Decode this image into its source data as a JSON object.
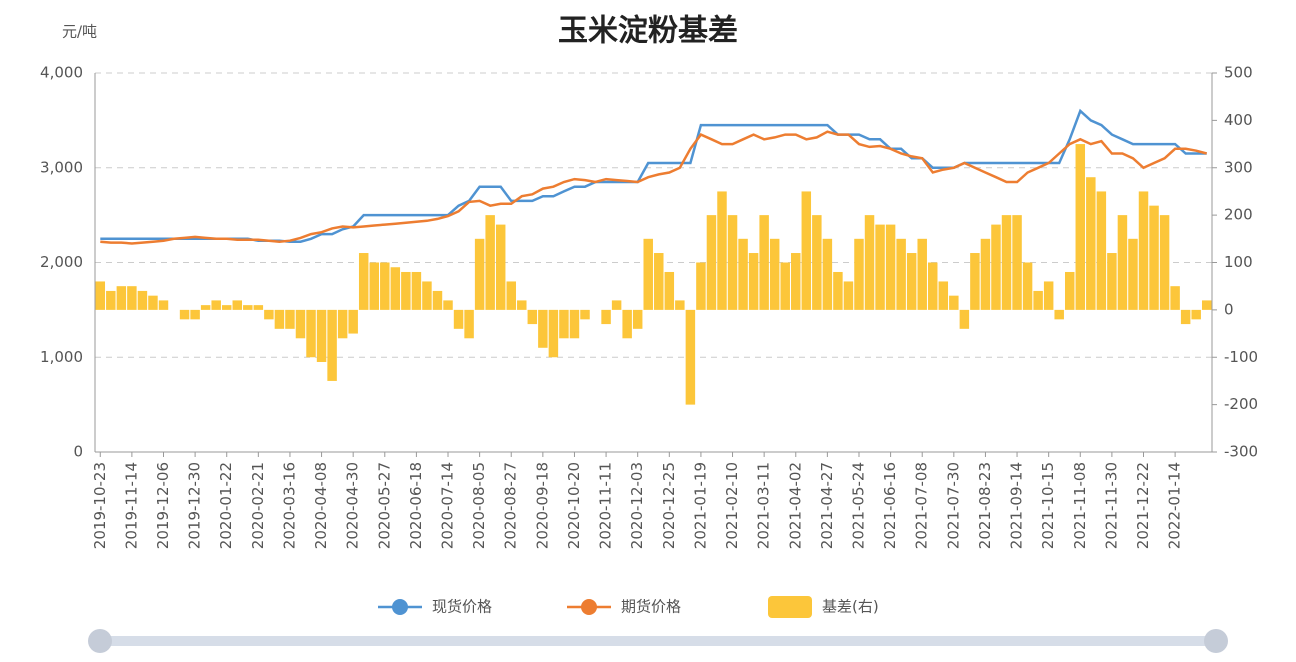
{
  "chart_data": {
    "type": "line-bar",
    "title": "玉米淀粉基差",
    "y_label": "元/吨",
    "categories": [
      "2019-10-23",
      null,
      null,
      "2019-11-14",
      null,
      null,
      "2019-12-06",
      null,
      null,
      "2019-12-30",
      null,
      null,
      "2020-01-22",
      null,
      null,
      "2020-02-21",
      null,
      null,
      "2020-03-16",
      null,
      null,
      "2020-04-08",
      null,
      null,
      "2020-04-30",
      null,
      null,
      "2020-05-27",
      null,
      null,
      "2020-06-18",
      null,
      null,
      "2020-07-14",
      null,
      null,
      "2020-08-05",
      null,
      null,
      "2020-08-27",
      null,
      null,
      "2020-09-18",
      null,
      null,
      "2020-10-20",
      null,
      null,
      "2020-11-11",
      null,
      null,
      "2020-12-03",
      null,
      null,
      "2020-12-25",
      null,
      null,
      "2021-01-19",
      null,
      null,
      "2021-02-10",
      null,
      null,
      "2021-03-11",
      null,
      null,
      "2021-04-02",
      null,
      null,
      "2021-04-27",
      null,
      null,
      "2021-05-24",
      null,
      null,
      "2021-06-16",
      null,
      null,
      "2021-07-08",
      null,
      null,
      "2021-07-30",
      null,
      null,
      "2021-08-23",
      null,
      null,
      "2021-09-14",
      null,
      null,
      "2021-10-15",
      null,
      null,
      "2021-11-08",
      null,
      null,
      "2021-11-30",
      null,
      null,
      "2021-12-22",
      null,
      null,
      "2022-01-14",
      null,
      null,
      null
    ],
    "series": [
      {
        "name": "现货价格",
        "kind": "line",
        "color": "#4f93d2",
        "values": [
          2250,
          2250,
          2250,
          2250,
          2250,
          2250,
          2250,
          2250,
          2250,
          2250,
          2250,
          2250,
          2250,
          2250,
          2250,
          2230,
          2230,
          2230,
          2220,
          2220,
          2250,
          2300,
          2300,
          2350,
          2380,
          2500,
          2500,
          2500,
          2500,
          2500,
          2500,
          2500,
          2500,
          2500,
          2600,
          2650,
          2800,
          2800,
          2800,
          2650,
          2650,
          2650,
          2700,
          2700,
          2750,
          2800,
          2800,
          2850,
          2850,
          2850,
          2850,
          2850,
          3050,
          3050,
          3050,
          3050,
          3050,
          3450,
          3450,
          3450,
          3450,
          3450,
          3450,
          3450,
          3450,
          3450,
          3450,
          3450,
          3450,
          3450,
          3350,
          3350,
          3350,
          3300,
          3300,
          3200,
          3200,
          3100,
          3100,
          3000,
          3000,
          3000,
          3050,
          3050,
          3050,
          3050,
          3050,
          3050,
          3050,
          3050,
          3050,
          3050,
          3300,
          3600,
          3500,
          3450,
          3350,
          3300,
          3250,
          3250,
          3250,
          3250,
          3250,
          3150,
          3150,
          3150
        ]
      },
      {
        "name": "期货价格",
        "kind": "line",
        "color": "#ed7d31",
        "values": [
          2220,
          2210,
          2210,
          2200,
          2210,
          2220,
          2230,
          2250,
          2260,
          2270,
          2260,
          2250,
          2250,
          2240,
          2240,
          2240,
          2230,
          2220,
          2230,
          2260,
          2300,
          2320,
          2360,
          2380,
          2370,
          2380,
          2390,
          2400,
          2410,
          2420,
          2430,
          2440,
          2460,
          2490,
          2540,
          2640,
          2650,
          2600,
          2620,
          2620,
          2700,
          2720,
          2780,
          2800,
          2850,
          2880,
          2870,
          2850,
          2880,
          2870,
          2860,
          2850,
          2900,
          2930,
          2950,
          3000,
          3200,
          3350,
          3300,
          3250,
          3250,
          3300,
          3350,
          3300,
          3320,
          3350,
          3350,
          3300,
          3320,
          3380,
          3350,
          3350,
          3250,
          3220,
          3230,
          3200,
          3150,
          3120,
          3100,
          2950,
          2980,
          3000,
          3050,
          3000,
          2950,
          2900,
          2850,
          2850,
          2950,
          3000,
          3050,
          3150,
          3250,
          3300,
          3250,
          3280,
          3150,
          3150,
          3100,
          3000,
          3050,
          3100,
          3200,
          3200,
          3180,
          3150
        ]
      },
      {
        "name": "基差(右)",
        "kind": "bar",
        "axis": "y2",
        "color": "#fcc63a",
        "values": [
          60,
          40,
          50,
          50,
          40,
          30,
          20,
          0,
          -20,
          -20,
          10,
          20,
          10,
          20,
          10,
          10,
          -20,
          -40,
          -40,
          -60,
          -100,
          -110,
          -150,
          -60,
          -50,
          120,
          100,
          100,
          90,
          80,
          80,
          60,
          40,
          20,
          -40,
          -60,
          150,
          200,
          180,
          60,
          20,
          -30,
          -80,
          -100,
          -60,
          -60,
          -20,
          0,
          -30,
          20,
          -60,
          -40,
          150,
          120,
          80,
          20,
          -200,
          100,
          200,
          250,
          200,
          150,
          120,
          200,
          150,
          100,
          120,
          250,
          200,
          150,
          80,
          60,
          150,
          200,
          180,
          180,
          150,
          120,
          150,
          100,
          60,
          30,
          -40,
          120,
          150,
          180,
          200,
          200,
          100,
          40,
          60,
          -20,
          80,
          350,
          280,
          250,
          120,
          200,
          150,
          250,
          220,
          200,
          50,
          -30,
          -20,
          20
        ]
      }
    ],
    "ylim": [
      0,
      4000
    ],
    "yticks": [
      0,
      {
        "value": 1000,
        "label": "1,000"
      },
      {
        "value": 2000,
        "label": "2,000"
      },
      {
        "value": 3000,
        "label": "3,000"
      },
      {
        "value": 4000,
        "label": "4,000"
      }
    ],
    "y2lim": [
      -300,
      500
    ],
    "y2ticks": [
      -300,
      -200,
      -100,
      0,
      100,
      200,
      300,
      400,
      500
    ],
    "grid": true
  }
}
